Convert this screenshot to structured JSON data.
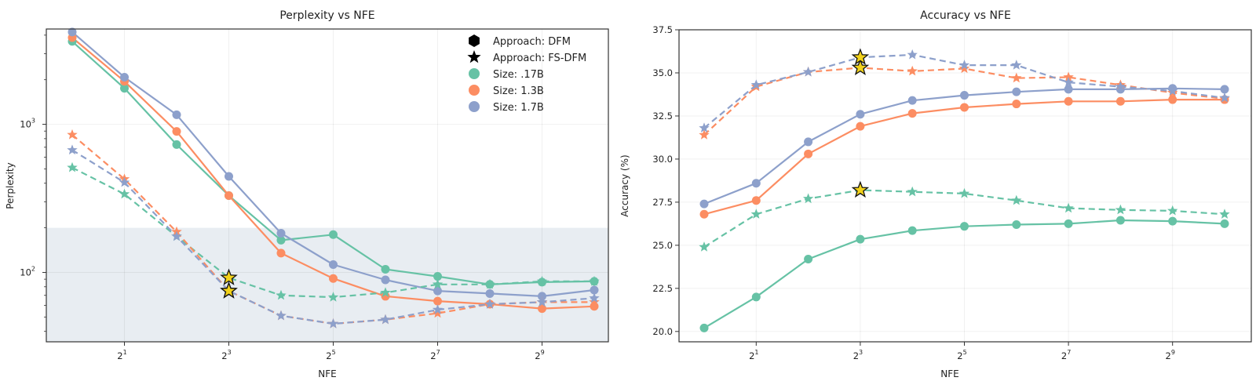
{
  "chart_data": [
    {
      "id": "perplexity",
      "type": "line",
      "title": "Perplexity vs NFE",
      "xlabel": "NFE",
      "ylabel": "Perplexity",
      "xscale": "log2",
      "yscale": "log10",
      "x": [
        1,
        2,
        4,
        8,
        16,
        32,
        64,
        128,
        256,
        512,
        1024
      ],
      "xticks": [
        {
          "value": 2,
          "label": "2",
          "exp": "1"
        },
        {
          "value": 8,
          "label": "2",
          "exp": "3"
        },
        {
          "value": 32,
          "label": "2",
          "exp": "5"
        },
        {
          "value": 128,
          "label": "2",
          "exp": "7"
        },
        {
          "value": 512,
          "label": "2",
          "exp": "9"
        }
      ],
      "yticks": [
        {
          "value": 100,
          "label": "10",
          "exp": "2"
        },
        {
          "value": 1000,
          "label": "10",
          "exp": "3"
        }
      ],
      "ylim": [
        34,
        4400
      ],
      "grid": true,
      "shaded_region": {
        "y_from": 34,
        "y_to": 200,
        "color": "#e8edf2"
      },
      "legend": {
        "position": "top-right",
        "entries": [
          {
            "label": "Approach: DFM",
            "marker": "hexagon",
            "color": "#000000"
          },
          {
            "label": "Approach: FS-DFM",
            "marker": "star",
            "color": "#000000"
          },
          {
            "label": "Size: .17B",
            "marker": "circle",
            "color": "#66c2a5"
          },
          {
            "label": "Size: 1.3B",
            "marker": "circle",
            "color": "#fc8d62"
          },
          {
            "label": "Size: 1.7B",
            "marker": "circle",
            "color": "#8da0cb"
          }
        ]
      },
      "series": [
        {
          "name": "DFM .17B",
          "approach": "DFM",
          "size": ".17B",
          "color": "#66c2a5",
          "dashed": false,
          "marker": "circle",
          "values": [
            3630,
            1750,
            730,
            330,
            165,
            180,
            105,
            94,
            83,
            86,
            87
          ]
        },
        {
          "name": "DFM 1.3B",
          "approach": "DFM",
          "size": "1.3B",
          "color": "#fc8d62",
          "dashed": false,
          "marker": "circle",
          "values": [
            3850,
            1950,
            895,
            330,
            135,
            91,
            69,
            64,
            61,
            57,
            59
          ]
        },
        {
          "name": "DFM 1.7B",
          "approach": "DFM",
          "size": "1.7B",
          "color": "#8da0cb",
          "dashed": false,
          "marker": "circle",
          "values": [
            4200,
            2080,
            1160,
            445,
            184,
            113,
            89,
            75,
            72,
            69,
            76
          ]
        },
        {
          "name": "FS-DFM .17B",
          "approach": "FS-DFM",
          "size": ".17B",
          "color": "#66c2a5",
          "dashed": true,
          "marker": "star",
          "values": [
            510,
            338,
            175,
            92,
            70,
            68,
            73,
            83,
            83,
            87,
            87
          ],
          "highlight_index": 3
        },
        {
          "name": "FS-DFM 1.3B",
          "approach": "FS-DFM",
          "size": "1.3B",
          "color": "#fc8d62",
          "dashed": true,
          "marker": "star",
          "values": [
            850,
            427,
            188,
            75,
            51,
            45,
            48,
            53,
            61,
            63,
            63
          ],
          "highlight_index": 3
        },
        {
          "name": "FS-DFM 1.7B",
          "approach": "FS-DFM",
          "size": "1.7B",
          "color": "#8da0cb",
          "dashed": true,
          "marker": "star",
          "values": [
            670,
            405,
            175,
            75,
            51,
            45,
            48,
            56,
            61,
            63,
            67
          ],
          "highlight_index": 3
        }
      ]
    },
    {
      "id": "accuracy",
      "type": "line",
      "title": "Accuracy vs NFE",
      "xlabel": "NFE",
      "ylabel": "Accuracy (%)",
      "xscale": "log2",
      "yscale": "linear",
      "x": [
        1,
        2,
        4,
        8,
        16,
        32,
        64,
        128,
        256,
        512,
        1024
      ],
      "xticks": [
        {
          "value": 2,
          "label": "2",
          "exp": "1"
        },
        {
          "value": 8,
          "label": "2",
          "exp": "3"
        },
        {
          "value": 32,
          "label": "2",
          "exp": "5"
        },
        {
          "value": 128,
          "label": "2",
          "exp": "7"
        },
        {
          "value": 512,
          "label": "2",
          "exp": "9"
        }
      ],
      "yticks": [
        {
          "value": 20.0,
          "label": "20.0"
        },
        {
          "value": 22.5,
          "label": "22.5"
        },
        {
          "value": 25.0,
          "label": "25.0"
        },
        {
          "value": 27.5,
          "label": "27.5"
        },
        {
          "value": 30.0,
          "label": "30.0"
        },
        {
          "value": 32.5,
          "label": "32.5"
        },
        {
          "value": 35.0,
          "label": "35.0"
        },
        {
          "value": 37.5,
          "label": "37.5"
        }
      ],
      "ylim": [
        19.4,
        37.5
      ],
      "grid": true,
      "series": [
        {
          "name": "DFM .17B",
          "approach": "DFM",
          "size": ".17B",
          "color": "#66c2a5",
          "dashed": false,
          "marker": "circle",
          "values": [
            20.2,
            22.0,
            24.2,
            25.35,
            25.85,
            26.1,
            26.2,
            26.25,
            26.45,
            26.4,
            26.25
          ]
        },
        {
          "name": "DFM 1.3B",
          "approach": "DFM",
          "size": "1.3B",
          "color": "#fc8d62",
          "dashed": false,
          "marker": "circle",
          "values": [
            26.8,
            27.6,
            30.3,
            31.9,
            32.65,
            33.0,
            33.2,
            33.35,
            33.35,
            33.45,
            33.45
          ]
        },
        {
          "name": "DFM 1.7B",
          "approach": "DFM",
          "size": "1.7B",
          "color": "#8da0cb",
          "dashed": false,
          "marker": "circle",
          "values": [
            27.4,
            28.6,
            31.0,
            32.6,
            33.4,
            33.7,
            33.9,
            34.05,
            34.05,
            34.1,
            34.05
          ]
        },
        {
          "name": "FS-DFM .17B",
          "approach": "FS-DFM",
          "size": ".17B",
          "color": "#66c2a5",
          "dashed": true,
          "marker": "star",
          "values": [
            24.9,
            26.8,
            27.7,
            28.2,
            28.1,
            28.0,
            27.6,
            27.15,
            27.05,
            27.0,
            26.8
          ],
          "highlight_index": 3
        },
        {
          "name": "FS-DFM 1.3B",
          "approach": "FS-DFM",
          "size": "1.3B",
          "color": "#fc8d62",
          "dashed": true,
          "marker": "star",
          "values": [
            31.4,
            34.2,
            35.05,
            35.3,
            35.1,
            35.25,
            34.7,
            34.75,
            34.3,
            33.85,
            33.5
          ],
          "highlight_index": 3
        },
        {
          "name": "FS-DFM 1.7B",
          "approach": "FS-DFM",
          "size": "1.7B",
          "color": "#8da0cb",
          "dashed": true,
          "marker": "star",
          "values": [
            31.8,
            34.3,
            35.05,
            35.9,
            36.05,
            35.45,
            35.45,
            34.45,
            34.2,
            33.95,
            33.55
          ],
          "highlight_index": 3
        }
      ]
    }
  ],
  "highlight_color": "#f2d21b"
}
